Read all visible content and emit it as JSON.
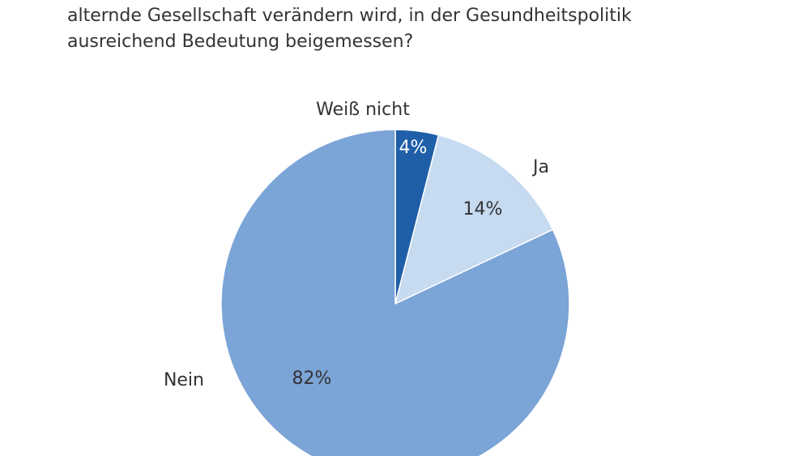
{
  "chart_data": {
    "type": "pie",
    "title": [
      "alternde Gesellschaft verändern wird, in der Gesundheitspolitik",
      "ausreichend Bedeutung beigemessen?"
    ],
    "categories": [
      "Weiß nicht",
      "Ja",
      "Nein"
    ],
    "values": [
      4,
      14,
      82
    ],
    "value_labels": [
      "4%",
      "14%",
      "82%"
    ],
    "colors": [
      "#1f5fa8",
      "#c6daf0",
      "#7ba4d7"
    ]
  }
}
